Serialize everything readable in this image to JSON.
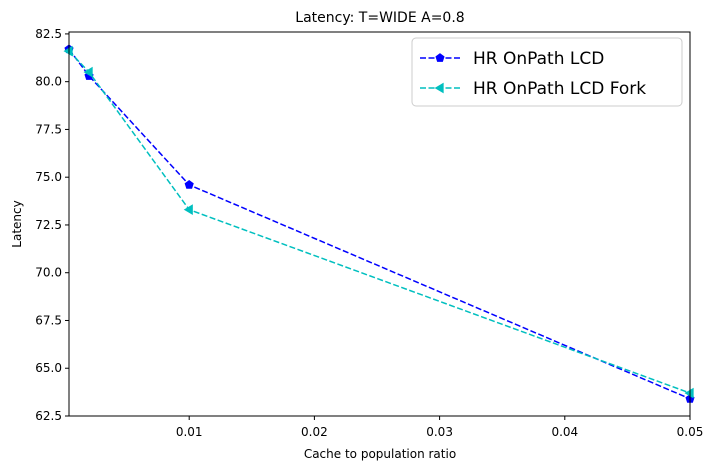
{
  "chart_data": {
    "type": "line",
    "title": "Latency: T=WIDE A=0.8",
    "xlabel": "Cache to population ratio",
    "ylabel": "Latency",
    "xlim": [
      0.0004,
      0.05
    ],
    "ylim": [
      62.5,
      82.6
    ],
    "x_ticks": [
      0.01,
      0.02,
      0.03,
      0.04,
      0.05
    ],
    "x_tick_labels": [
      "0.01",
      "0.02",
      "0.03",
      "0.04",
      "0.05"
    ],
    "y_ticks": [
      62.5,
      65.0,
      67.5,
      70.0,
      72.5,
      75.0,
      77.5,
      80.0,
      82.5
    ],
    "y_tick_labels": [
      "62.5",
      "65.0",
      "67.5",
      "70.0",
      "72.5",
      "75.0",
      "77.5",
      "80.0",
      "82.5"
    ],
    "grid": false,
    "legend_position": "top-right",
    "series": [
      {
        "name": "HR OnPath LCD",
        "color": "#0000ff",
        "marker": "pentagon",
        "linestyle": "dashed",
        "x": [
          0.0004,
          0.002,
          0.01,
          0.05
        ],
        "y": [
          81.7,
          80.3,
          74.6,
          63.4
        ]
      },
      {
        "name": "HR OnPath LCD Fork",
        "color": "#00bfbf",
        "marker": "triangle-left",
        "linestyle": "dashed",
        "x": [
          0.0004,
          0.002,
          0.01,
          0.05
        ],
        "y": [
          81.6,
          80.5,
          73.3,
          63.7
        ]
      }
    ]
  }
}
